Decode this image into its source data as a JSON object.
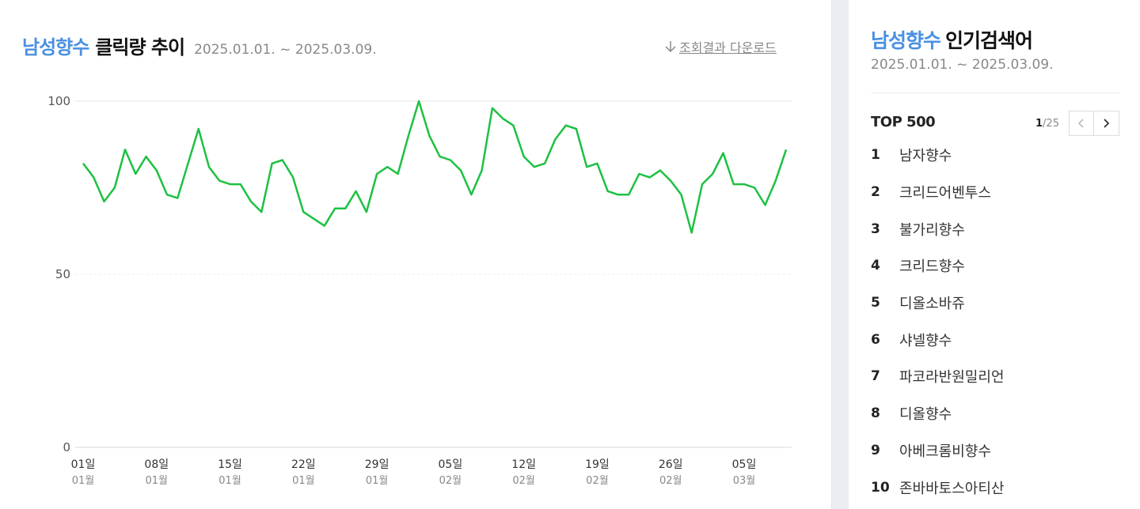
{
  "header": {
    "keyword": "남성향수",
    "title": "클릭량 추이",
    "date_range": "2025.01.01. ~ 2025.03.09.",
    "download_label": "조회결과 다운로드"
  },
  "sidebar": {
    "keyword": "남성향수",
    "title": "인기검색어",
    "date_range": "2025.01.01. ~ 2025.03.09.",
    "top_label": "TOP 500",
    "page_current": "1",
    "page_total": "/25",
    "items": [
      {
        "rank": "1",
        "name": "남자향수"
      },
      {
        "rank": "2",
        "name": "크리드어벤투스"
      },
      {
        "rank": "3",
        "name": "불가리향수"
      },
      {
        "rank": "4",
        "name": "크리드향수"
      },
      {
        "rank": "5",
        "name": "디올소바쥬"
      },
      {
        "rank": "6",
        "name": "샤넬향수"
      },
      {
        "rank": "7",
        "name": "파코라반원밀리언"
      },
      {
        "rank": "8",
        "name": "디올향수"
      },
      {
        "rank": "9",
        "name": "아베크롬비향수"
      },
      {
        "rank": "10",
        "name": "존바바토스아티산"
      }
    ]
  },
  "chart_data": {
    "type": "line",
    "color": "#1dc142",
    "ylim": [
      0,
      100
    ],
    "y_ticks": [
      "0",
      "50",
      "100"
    ],
    "x_tick_labels": [
      {
        "day": "01일",
        "month": "01월"
      },
      {
        "day": "08일",
        "month": "01월"
      },
      {
        "day": "15일",
        "month": "01월"
      },
      {
        "day": "22일",
        "month": "01월"
      },
      {
        "day": "29일",
        "month": "01월"
      },
      {
        "day": "05일",
        "month": "02월"
      },
      {
        "day": "12일",
        "month": "02월"
      },
      {
        "day": "19일",
        "month": "02월"
      },
      {
        "day": "26일",
        "month": "02월"
      },
      {
        "day": "05일",
        "month": "03월"
      }
    ],
    "x": [
      "2025-01-01",
      "2025-01-02",
      "2025-01-03",
      "2025-01-04",
      "2025-01-05",
      "2025-01-06",
      "2025-01-07",
      "2025-01-08",
      "2025-01-09",
      "2025-01-10",
      "2025-01-11",
      "2025-01-12",
      "2025-01-13",
      "2025-01-14",
      "2025-01-15",
      "2025-01-16",
      "2025-01-17",
      "2025-01-18",
      "2025-01-19",
      "2025-01-20",
      "2025-01-21",
      "2025-01-22",
      "2025-01-23",
      "2025-01-24",
      "2025-01-25",
      "2025-01-26",
      "2025-01-27",
      "2025-01-28",
      "2025-01-29",
      "2025-01-30",
      "2025-01-31",
      "2025-02-01",
      "2025-02-02",
      "2025-02-03",
      "2025-02-04",
      "2025-02-05",
      "2025-02-06",
      "2025-02-07",
      "2025-02-08",
      "2025-02-09",
      "2025-02-10",
      "2025-02-11",
      "2025-02-12",
      "2025-02-13",
      "2025-02-14",
      "2025-02-15",
      "2025-02-16",
      "2025-02-17",
      "2025-02-18",
      "2025-02-19",
      "2025-02-20",
      "2025-02-21",
      "2025-02-22",
      "2025-02-23",
      "2025-02-24",
      "2025-02-25",
      "2025-02-26",
      "2025-02-27",
      "2025-02-28",
      "2025-03-01",
      "2025-03-02",
      "2025-03-03",
      "2025-03-04",
      "2025-03-05",
      "2025-03-06",
      "2025-03-07",
      "2025-03-08",
      "2025-03-09"
    ],
    "values": [
      82,
      78,
      71,
      75,
      86,
      79,
      84,
      80,
      73,
      72,
      82,
      92,
      81,
      77,
      76,
      76,
      71,
      68,
      82,
      83,
      78,
      68,
      66,
      64,
      69,
      69,
      74,
      68,
      79,
      81,
      79,
      90,
      100,
      90,
      84,
      83,
      80,
      73,
      80,
      98,
      95,
      93,
      84,
      81,
      82,
      89,
      93,
      92,
      81,
      82,
      74,
      73,
      73,
      79,
      78,
      80,
      77,
      73,
      62,
      76,
      79,
      85,
      76,
      76,
      75,
      70,
      77,
      86
    ]
  }
}
